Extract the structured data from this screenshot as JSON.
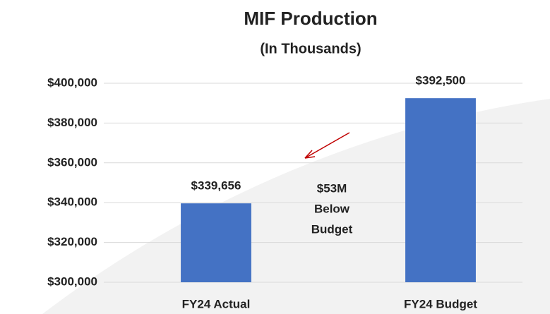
{
  "chart_data": {
    "type": "bar",
    "title": "MIF Production",
    "subtitle": "(In Thousands)",
    "categories": [
      "FY24 Actual",
      "FY24 Budget"
    ],
    "values": [
      339656,
      392500
    ],
    "value_labels": [
      "$339,656",
      "$392,500"
    ],
    "color": "#4472c4",
    "ylim": [
      300000,
      400000
    ],
    "yticks": [
      {
        "value": 300000,
        "label": "$300,000"
      },
      {
        "value": 320000,
        "label": "$320,000"
      },
      {
        "value": 340000,
        "label": "$340,000"
      },
      {
        "value": 360000,
        "label": "$360,000"
      },
      {
        "value": 380000,
        "label": "$380,000"
      },
      {
        "value": 400000,
        "label": "$400,000"
      }
    ],
    "grid": true,
    "annotation": [
      "$53M",
      "Below",
      "Budget"
    ]
  }
}
